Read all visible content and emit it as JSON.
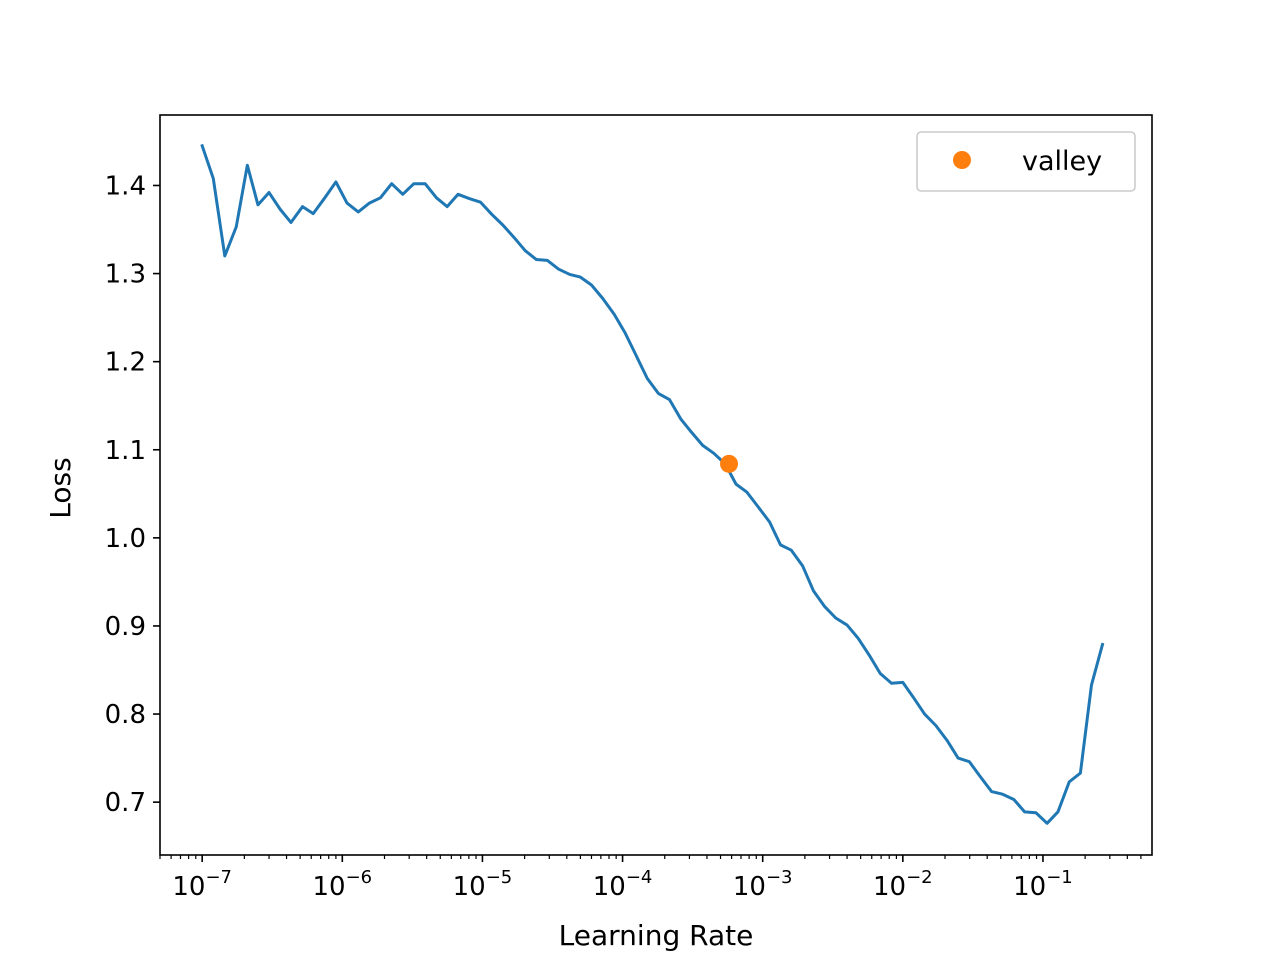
{
  "chart_data": {
    "type": "line",
    "xlabel": "Learning Rate",
    "ylabel": "Loss",
    "xscale": "log",
    "xlim": [
      5e-08,
      0.6
    ],
    "ylim": [
      0.64,
      1.48
    ],
    "grid": false,
    "legend_position": "top-right",
    "x_ticks": [
      {
        "value": 1e-07,
        "base": "10",
        "exp": "−7"
      },
      {
        "value": 1e-06,
        "base": "10",
        "exp": "−6"
      },
      {
        "value": 1e-05,
        "base": "10",
        "exp": "−5"
      },
      {
        "value": 0.0001,
        "base": "10",
        "exp": "−4"
      },
      {
        "value": 0.001,
        "base": "10",
        "exp": "−3"
      },
      {
        "value": 0.01,
        "base": "10",
        "exp": "−2"
      },
      {
        "value": 0.1,
        "base": "10",
        "exp": "−1"
      }
    ],
    "y_ticks": [
      {
        "value": 0.7,
        "label": "0.7"
      },
      {
        "value": 0.8,
        "label": "0.8"
      },
      {
        "value": 0.9,
        "label": "0.9"
      },
      {
        "value": 1.0,
        "label": "1.0"
      },
      {
        "value": 1.1,
        "label": "1.1"
      },
      {
        "value": 1.2,
        "label": "1.2"
      },
      {
        "value": 1.3,
        "label": "1.3"
      },
      {
        "value": 1.4,
        "label": "1.4"
      }
    ],
    "series": [
      {
        "color": "#1f77b4",
        "points": [
          [
            1e-07,
            1.445
          ],
          [
            1.2e-07,
            1.408
          ],
          [
            1.45e-07,
            1.32
          ],
          [
            1.75e-07,
            1.353
          ],
          [
            2.1e-07,
            1.423
          ],
          [
            2.5e-07,
            1.378
          ],
          [
            3e-07,
            1.392
          ],
          [
            3.6e-07,
            1.373
          ],
          [
            4.3e-07,
            1.358
          ],
          [
            5.2e-07,
            1.376
          ],
          [
            6.2e-07,
            1.368
          ],
          [
            7.5e-07,
            1.386
          ],
          [
            9e-07,
            1.404
          ],
          [
            1.08e-06,
            1.38
          ],
          [
            1.3e-06,
            1.37
          ],
          [
            1.56e-06,
            1.38
          ],
          [
            1.87e-06,
            1.386
          ],
          [
            2.25e-06,
            1.402
          ],
          [
            2.7e-06,
            1.39
          ],
          [
            3.24e-06,
            1.402
          ],
          [
            3.9e-06,
            1.402
          ],
          [
            4.7e-06,
            1.386
          ],
          [
            5.6e-06,
            1.376
          ],
          [
            6.7e-06,
            1.39
          ],
          [
            8.1e-06,
            1.385
          ],
          [
            9.7e-06,
            1.381
          ],
          [
            1.17e-05,
            1.367
          ],
          [
            1.4e-05,
            1.355
          ],
          [
            1.68e-05,
            1.341
          ],
          [
            2.02e-05,
            1.326
          ],
          [
            2.42e-05,
            1.316
          ],
          [
            2.9e-05,
            1.315
          ],
          [
            3.5e-05,
            1.305
          ],
          [
            4.2e-05,
            1.299
          ],
          [
            5e-05,
            1.296
          ],
          [
            6e-05,
            1.287
          ],
          [
            7.2e-05,
            1.272
          ],
          [
            8.7e-05,
            1.254
          ],
          [
            0.000104,
            1.233
          ],
          [
            0.000125,
            1.207
          ],
          [
            0.00015,
            1.181
          ],
          [
            0.00018,
            1.164
          ],
          [
            0.000216,
            1.157
          ],
          [
            0.00026,
            1.135
          ],
          [
            0.00031,
            1.12
          ],
          [
            0.000373,
            1.105
          ],
          [
            0.000448,
            1.096
          ],
          [
            0.00054,
            1.084
          ],
          [
            0.000645,
            1.061
          ],
          [
            0.00077,
            1.052
          ],
          [
            0.00093,
            1.035
          ],
          [
            0.00112,
            1.018
          ],
          [
            0.00134,
            0.992
          ],
          [
            0.0016,
            0.986
          ],
          [
            0.00193,
            0.968
          ],
          [
            0.0023,
            0.94
          ],
          [
            0.00277,
            0.922
          ],
          [
            0.00332,
            0.909
          ],
          [
            0.004,
            0.901
          ],
          [
            0.0048,
            0.886
          ],
          [
            0.00575,
            0.867
          ],
          [
            0.0069,
            0.846
          ],
          [
            0.0083,
            0.835
          ],
          [
            0.01,
            0.836
          ],
          [
            0.012,
            0.818
          ],
          [
            0.0143,
            0.8
          ],
          [
            0.0172,
            0.787
          ],
          [
            0.0207,
            0.77
          ],
          [
            0.0248,
            0.75
          ],
          [
            0.0298,
            0.746
          ],
          [
            0.0357,
            0.729
          ],
          [
            0.043,
            0.712
          ],
          [
            0.0515,
            0.709
          ],
          [
            0.062,
            0.703
          ],
          [
            0.074,
            0.689
          ],
          [
            0.089,
            0.688
          ],
          [
            0.107,
            0.676
          ],
          [
            0.128,
            0.689
          ],
          [
            0.154,
            0.723
          ],
          [
            0.185,
            0.733
          ],
          [
            0.222,
            0.833
          ],
          [
            0.266,
            0.879
          ]
        ]
      }
    ],
    "markers": [
      {
        "name": "valley",
        "x": 0.000575,
        "y": 1.084,
        "color": "#ff7f0e"
      }
    ],
    "legend": [
      {
        "label": "valley",
        "color": "#ff7f0e"
      }
    ]
  }
}
